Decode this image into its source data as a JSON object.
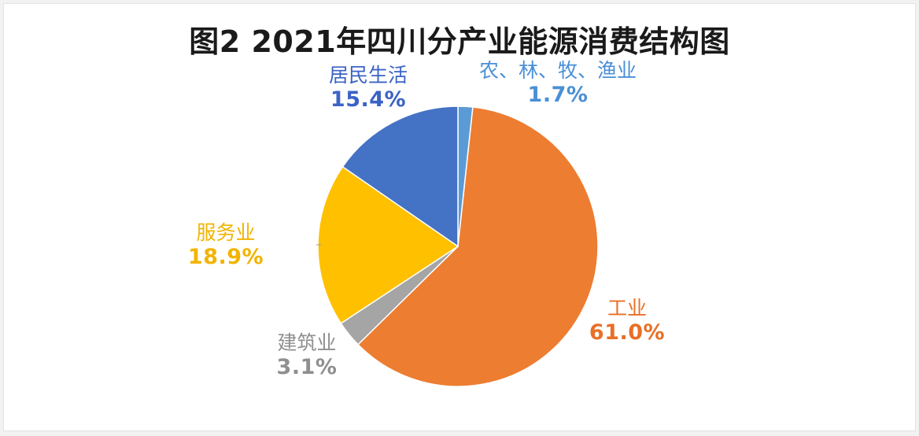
{
  "chart_data": {
    "type": "pie",
    "title": "图2 2021年四川分产业能源消费结构图",
    "slices": [
      {
        "name": "农、林、牧、渔业",
        "value": 1.7,
        "label": "1.7%",
        "color": "#5b9bd5",
        "label_color": "#4a8fd6"
      },
      {
        "name": "工业",
        "value": 61.0,
        "label": "61.0%",
        "color": "#ed7d31",
        "label_color": "#e86f26"
      },
      {
        "name": "建筑业",
        "value": 3.1,
        "label": "3.1%",
        "color": "#a5a5a5",
        "label_color": "#8f8f8f"
      },
      {
        "name": "服务业",
        "value": 18.9,
        "label": "18.9%",
        "color": "#ffc000",
        "label_color": "#f2b400"
      },
      {
        "name": "居民生活",
        "value": 15.4,
        "label": "15.4%",
        "color": "#4472c4",
        "label_color": "#3b63c6"
      }
    ],
    "start_angle_deg": 0,
    "direction": "clockwise"
  }
}
